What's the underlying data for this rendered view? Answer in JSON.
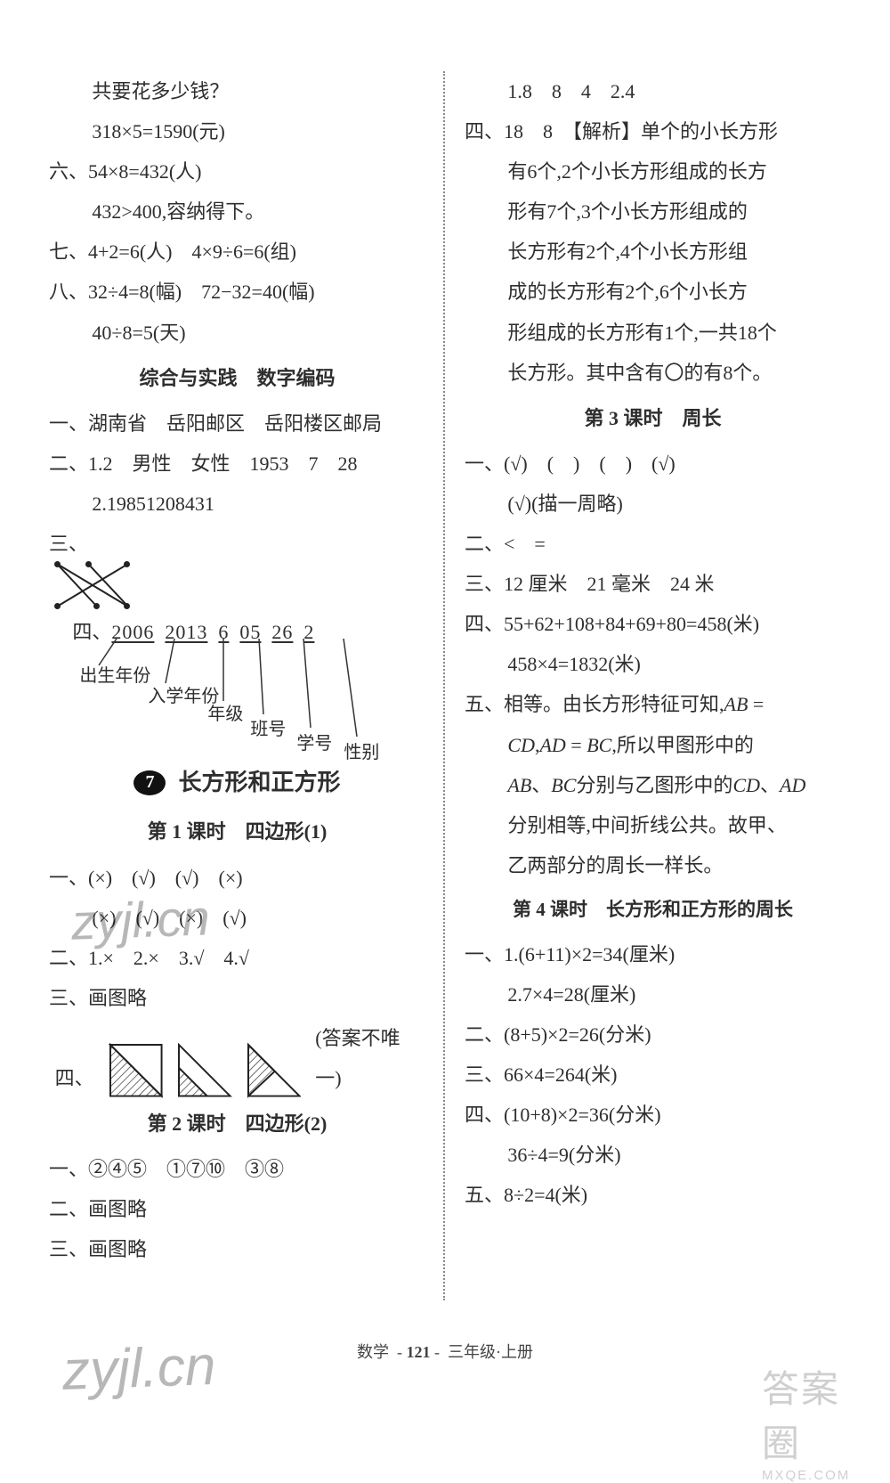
{
  "left": {
    "lines": [
      {
        "cls": "indent1",
        "text": "共要花多少钱？"
      },
      {
        "cls": "indent1",
        "text": "318×5=1590(元)"
      },
      {
        "cls": "indent0",
        "text": "六、54×8=432(人)"
      },
      {
        "cls": "indent1",
        "text": "432>400,容纳得下。"
      },
      {
        "cls": "indent0",
        "text": "七、4+2=6(人)　4×9÷6=6(组)"
      },
      {
        "cls": "indent0",
        "text": "八、32÷4=8(幅)　72−32=40(幅)"
      },
      {
        "cls": "indent1",
        "text": "40÷8=5(天)"
      }
    ],
    "subheading": "综合与实践　数字编码",
    "after_sub": [
      {
        "cls": "indent0",
        "text": "一、湖南省　岳阳邮区　岳阳楼区邮局"
      },
      {
        "cls": "indent0",
        "text": "二、1.2　男性　女性　1953　7　28"
      },
      {
        "cls": "indent1",
        "text": "2.19851208431"
      }
    ],
    "san_label": "三、",
    "brace": {
      "seq": [
        "2006",
        "2013",
        "6",
        "05",
        "26",
        "2"
      ],
      "labels": [
        "出生年份",
        "入学年份",
        "年级",
        "班号",
        "学号",
        "性别"
      ]
    },
    "chapter_num": "7",
    "chapter_title": "长方形和正方形",
    "lesson1": "第 1 课时　四边形(1)",
    "l1_lines": [
      {
        "cls": "indent0",
        "text": "一、(×)　(√)　(√)　(×)"
      },
      {
        "cls": "indent1",
        "text": "(×)　(√)　(×)　(√)"
      },
      {
        "cls": "indent0",
        "text": "二、1.×　2.×　3.√　4.√"
      },
      {
        "cls": "indent0",
        "text": "三、画图略"
      }
    ],
    "four_label": "四、",
    "four_tail": "(答案不唯一)",
    "lesson2": "第 2 课时　四边形(2)",
    "l2_lines": [
      {
        "cls": "indent0",
        "text": "一、②④⑤　①⑦⑩　③⑧"
      },
      {
        "cls": "indent0",
        "text": "二、画图略"
      },
      {
        "cls": "indent0",
        "text": "三、画图略"
      }
    ]
  },
  "right": {
    "top": [
      {
        "cls": "indent1",
        "text": "1.8　8　4　2.4"
      }
    ],
    "four_block": [
      "四、18　8　【解析】单个的小长方形",
      "有6个,2个小长方形组成的长方",
      "形有7个,3个小长方形组成的",
      "长方形有2个,4个小长方形组",
      "成的长方形有2个,6个小长方",
      "形组成的长方形有1个,一共18个",
      "长方形。其中含有〇的有8个。"
    ],
    "lesson3": "第 3 课时　周长",
    "l3_lines": [
      {
        "cls": "indent0",
        "text": "一、(√)　(　)　(　)　(√)"
      },
      {
        "cls": "indent1",
        "text": "(√)(描一周略)"
      },
      {
        "cls": "indent0",
        "text": "二、<　="
      },
      {
        "cls": "indent0",
        "text": "三、12 厘米　21 毫米　24 米"
      },
      {
        "cls": "indent0",
        "text": "四、55+62+108+84+69+80=458(米)"
      },
      {
        "cls": "indent1",
        "text": "458×4=1832(米)"
      }
    ],
    "five_block": [
      "五、相等。由长方形特征可知,AB =",
      "CD,AD = BC,所以甲图形中的",
      "AB、BC分别与乙图形中的CD、AD",
      "分别相等,中间折线公共。故甲、",
      "乙两部分的周长一样长。"
    ],
    "lesson4": "第 4 课时　长方形和正方形的周长",
    "l4_lines": [
      {
        "cls": "indent0",
        "text": "一、1.(6+11)×2=34(厘米)"
      },
      {
        "cls": "indent1",
        "text": "2.7×4=28(厘米)"
      },
      {
        "cls": "indent0",
        "text": "二、(8+5)×2=26(分米)"
      },
      {
        "cls": "indent0",
        "text": "三、66×4=264(米)"
      },
      {
        "cls": "indent0",
        "text": "四、(10+8)×2=36(分米)"
      },
      {
        "cls": "indent1",
        "text": "36÷4=9(分米)"
      },
      {
        "cls": "indent0",
        "text": "五、8÷2=4(米)"
      }
    ]
  },
  "footer": {
    "subject": "数学",
    "page": "121",
    "grade": "三年级·上册"
  },
  "watermarks": {
    "wm": "zyjl.cn",
    "badge_top": "答案圈",
    "badge_bottom": "MXQE.COM"
  }
}
